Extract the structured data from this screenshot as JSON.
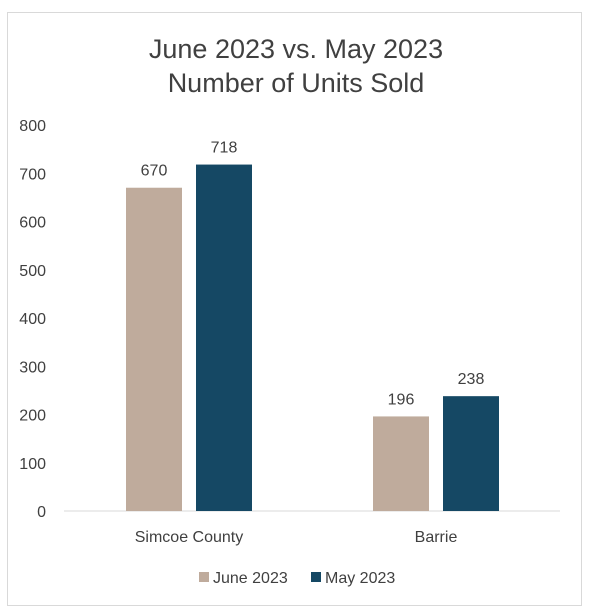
{
  "chart_data": {
    "type": "bar",
    "title": [
      "June 2023 vs. May 2023",
      "Number of Units Sold"
    ],
    "categories": [
      "Simcoe County",
      "Barrie"
    ],
    "series": [
      {
        "name": "June 2023",
        "color": "#bfab9c",
        "values": [
          670,
          196
        ]
      },
      {
        "name": "May 2023",
        "color": "#154864",
        "values": [
          718,
          238
        ]
      }
    ],
    "ylim": [
      0,
      800
    ],
    "yticks": [
      0,
      100,
      200,
      300,
      400,
      500,
      600,
      700,
      800
    ],
    "grid": false,
    "legend": "bottom",
    "data_labels": true
  }
}
